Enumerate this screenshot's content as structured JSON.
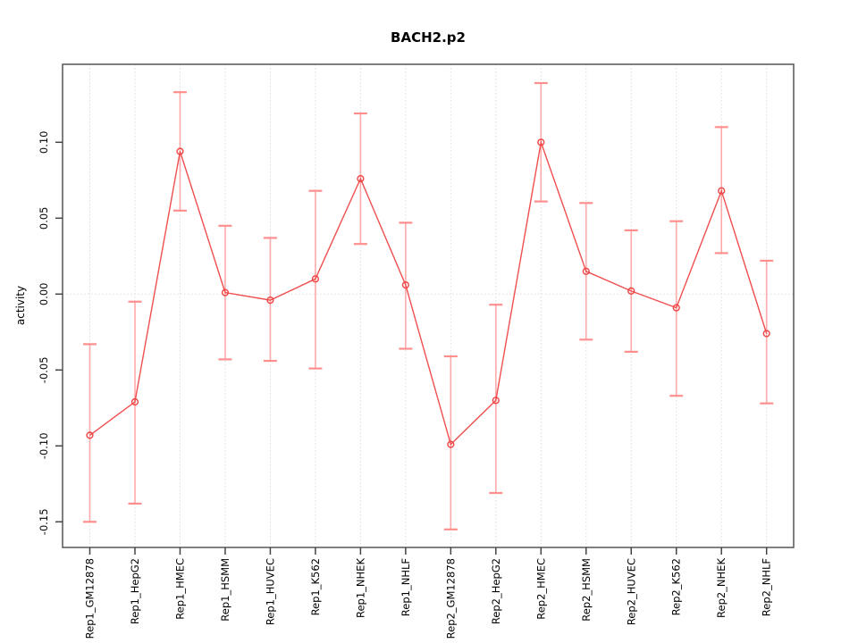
{
  "page": {
    "background": "#ffffff"
  },
  "chart_data": {
    "type": "line",
    "title": "BACH2.p2",
    "xlabel": "",
    "ylabel": "activity",
    "legend": "none",
    "categories": [
      "Rep1_GM12878",
      "Rep1_HepG2",
      "Rep1_HMEC",
      "Rep1_HSMM",
      "Rep1_HUVEC",
      "Rep1_K562",
      "Rep1_NHEK",
      "Rep1_NHLF",
      "Rep2_GM12878",
      "Rep2_HepG2",
      "Rep2_HMEC",
      "Rep2_HSMM",
      "Rep2_HUVEC",
      "Rep2_K562",
      "Rep2_NHEK",
      "Rep2_NHLF"
    ],
    "series": [
      {
        "name": "activity",
        "marker": "open-circle",
        "values": [
          -0.093,
          -0.071,
          0.094,
          0.001,
          -0.004,
          0.01,
          0.076,
          0.006,
          -0.099,
          -0.07,
          0.1,
          0.015,
          0.002,
          -0.009,
          0.068,
          -0.026
        ],
        "ci_low": [
          -0.15,
          -0.138,
          0.055,
          -0.043,
          -0.044,
          -0.049,
          0.033,
          -0.036,
          -0.155,
          -0.131,
          0.061,
          -0.03,
          -0.038,
          -0.067,
          0.027,
          -0.072
        ],
        "ci_high": [
          -0.033,
          -0.005,
          0.133,
          0.045,
          0.037,
          0.068,
          0.119,
          0.047,
          -0.041,
          -0.007,
          0.139,
          0.06,
          0.042,
          0.048,
          0.11,
          0.022
        ]
      }
    ],
    "error_bars": true,
    "yticks": {
      "values": [
        0.1,
        0.05,
        0.0,
        -0.05,
        -0.1,
        -0.15
      ],
      "labels": [
        "0.10",
        "0.05",
        "0.00",
        "-0.05",
        "-0.10",
        "-0.15"
      ]
    },
    "ylim": [
      -0.167,
      0.151
    ],
    "x_labels_rotated_degrees": 90,
    "grid": {
      "vertical": "dotted line at every category",
      "horizontal": "dotted line at zero only"
    },
    "colors": {
      "series_line": "#f04f4f",
      "marker": "#ee4444",
      "error_bar": "#ffaaaa",
      "error_cap": "#ff8f8f",
      "grid": "#dcdcdc",
      "axis_box": "#555555",
      "tick": "#444444",
      "text": "#000000"
    }
  }
}
